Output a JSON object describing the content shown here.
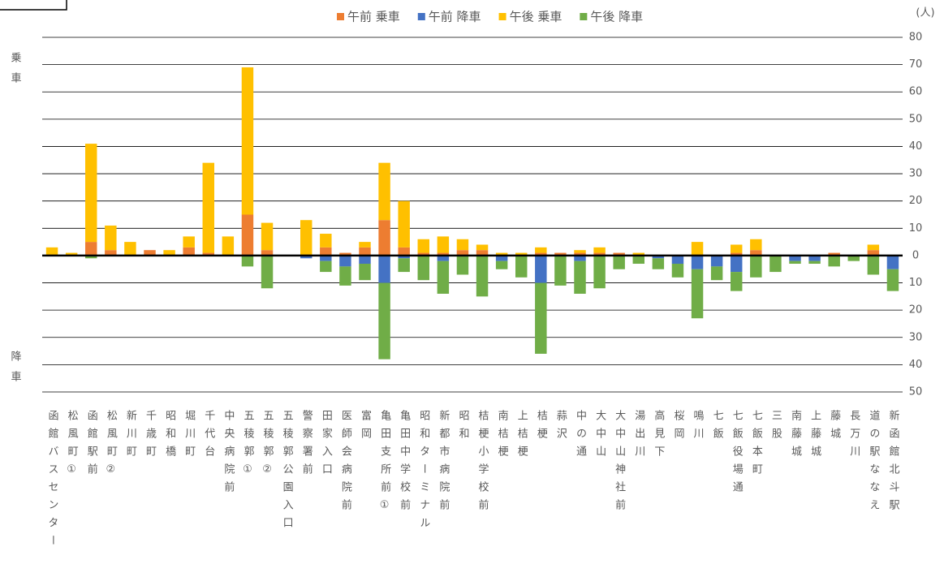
{
  "chart_data": {
    "type": "bar",
    "stacked": true,
    "side_labels": [
      "乗車",
      "降車"
    ],
    "unit": "(人)",
    "categories": [
      "函館バスセンター",
      "松風町①",
      "函館駅前",
      "松風町②",
      "新川町",
      "千歳町",
      "昭和橋",
      "堀川町",
      "千代台",
      "中央病院前",
      "五稜郭①",
      "五稜郭②",
      "五稜郭公園入口",
      "警察署前",
      "田家入口",
      "医師会病院前",
      "富岡",
      "亀田支所前①",
      "亀田中学校前",
      "昭和ターミナル",
      "新都市病院前",
      "昭和",
      "桔梗小学校前",
      "南桔梗",
      "上桔梗",
      "桔梗",
      "蒜沢",
      "中の通",
      "大中山",
      "大中山神社前",
      "湯出川",
      "高見下",
      "桜岡",
      "鳴川",
      "七飯",
      "七飯役場通",
      "七飯本町",
      "三股",
      "南藤城",
      "上藤城",
      "藤城",
      "長万川",
      "道の駅ななえ",
      "新函館北斗駅"
    ],
    "series": [
      {
        "name": "午前 乗車",
        "color": "#ed7d31",
        "values": [
          0,
          0,
          5,
          2,
          0,
          2,
          0,
          3,
          1,
          0,
          15,
          2,
          0,
          0,
          3,
          1,
          3,
          13,
          3,
          1,
          1,
          2,
          2,
          0,
          0,
          1,
          1,
          1,
          1,
          1,
          0,
          0,
          0,
          0,
          0,
          1,
          2,
          0,
          0,
          0,
          1,
          0,
          2,
          0
        ]
      },
      {
        "name": "午前 降車",
        "color": "#4472c4",
        "values": [
          0,
          0,
          0,
          0,
          0,
          0,
          0,
          0,
          0,
          0,
          0,
          0,
          0,
          -1,
          -2,
          -4,
          -3,
          -10,
          -1,
          0,
          -2,
          0,
          0,
          -2,
          0,
          -10,
          0,
          -2,
          0,
          0,
          0,
          -1,
          -3,
          -5,
          -4,
          -6,
          0,
          0,
          -2,
          -2,
          0,
          0,
          0,
          -5
        ]
      },
      {
        "name": "午後 乗車",
        "color": "#ffc000",
        "values": [
          3,
          1,
          36,
          9,
          5,
          0,
          2,
          4,
          33,
          7,
          54,
          10,
          0,
          13,
          5,
          0,
          2,
          21,
          17,
          5,
          6,
          4,
          2,
          1,
          1,
          2,
          0,
          1,
          2,
          0,
          1,
          0,
          0,
          5,
          0,
          3,
          4,
          0,
          0,
          0,
          0,
          0,
          2,
          0
        ]
      },
      {
        "name": "午後 降車",
        "color": "#70ad47",
        "values": [
          0,
          0,
          -1,
          0,
          0,
          0,
          0,
          0,
          0,
          0,
          -4,
          -12,
          0,
          0,
          -4,
          -7,
          -6,
          -28,
          -5,
          -9,
          -12,
          -7,
          -15,
          -3,
          -8,
          -26,
          -11,
          -12,
          -12,
          -5,
          -3,
          -4,
          -5,
          -18,
          -5,
          -7,
          -8,
          -6,
          -1,
          -1,
          -4,
          -2,
          -7,
          -8
        ]
      }
    ],
    "ylim": [
      -50,
      80
    ],
    "yticks": [
      {
        "value": -50,
        "label": "50"
      },
      {
        "value": -40,
        "label": "40"
      },
      {
        "value": -30,
        "label": "30"
      },
      {
        "value": -20,
        "label": "20"
      },
      {
        "value": -10,
        "label": "10"
      },
      0,
      10,
      20,
      30,
      40,
      50,
      60,
      70,
      80
    ],
    "grid": true,
    "legend": "top"
  }
}
